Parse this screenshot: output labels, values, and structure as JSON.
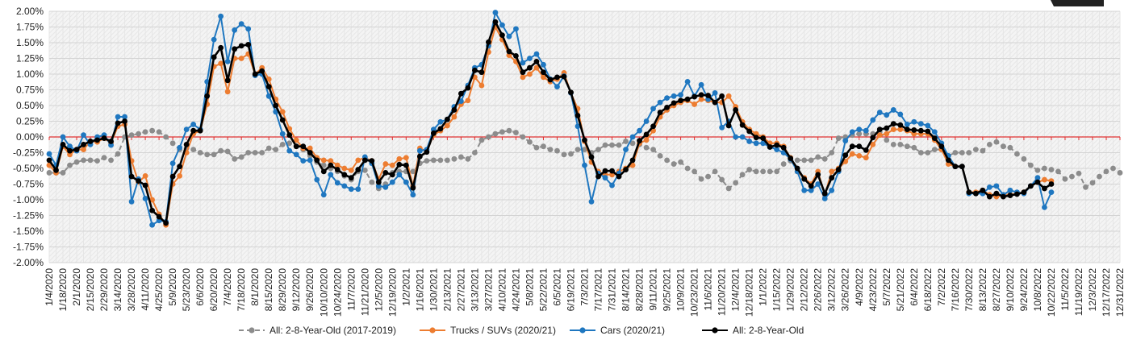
{
  "chart_data": {
    "type": "line",
    "title": "",
    "xlabel": "",
    "ylabel": "",
    "ylim": [
      -2.0,
      2.0
    ],
    "ytick_step": 0.25,
    "y_unit": "%",
    "x_start": "1/4/2020",
    "x_interval": "weekly",
    "grid": true,
    "legend_position": "bottom",
    "reference_line": {
      "value": 0,
      "color": "#e03030"
    },
    "x_tick_labels": [
      "1/4/2020",
      "1/18/2020",
      "2/1/2020",
      "2/15/2020",
      "2/29/2020",
      "3/14/2020",
      "3/28/2020",
      "4/11/2020",
      "4/25/2020",
      "5/9/2020",
      "5/23/2020",
      "6/6/2020",
      "6/20/2020",
      "7/4/2020",
      "7/18/2020",
      "8/1/2020",
      "8/15/2020",
      "8/29/2020",
      "9/12/2020",
      "9/26/2020",
      "10/10/2020",
      "10/24/2020",
      "11/7/2020",
      "11/21/2020",
      "12/5/2020",
      "12/19/2020",
      "1/2/2021",
      "1/16/2021",
      "1/30/2021",
      "2/13/2021",
      "2/27/2021",
      "3/13/2021",
      "3/27/2021",
      "4/10/2021",
      "4/24/2021",
      "5/8/2021",
      "5/22/2021",
      "6/5/2021",
      "6/19/2021",
      "7/3/2021",
      "7/17/2021",
      "7/31/2021",
      "8/14/2021",
      "8/28/2021",
      "9/11/2021",
      "9/25/2021",
      "10/9/2021",
      "10/23/2021",
      "11/6/2021",
      "11/20/2021",
      "12/4/2021",
      "12/18/2021",
      "1/1/2022",
      "1/15/2022",
      "1/29/2022",
      "2/12/2022",
      "2/26/2022",
      "3/12/2022",
      "3/26/2022",
      "4/9/2022",
      "4/23/2022",
      "5/7/2022",
      "5/21/2022",
      "6/4/2022",
      "6/18/2022",
      "7/2/2022",
      "7/16/2022",
      "7/30/2022",
      "8/13/2022",
      "8/27/2022",
      "9/10/2022",
      "9/24/2022",
      "10/8/2022",
      "10/22/2022",
      "11/5/2022",
      "11/19/2022",
      "12/3/2022",
      "12/17/2022",
      "12/31/2022"
    ],
    "y_tick_labels": [
      "2.00%",
      "1.75%",
      "1.50%",
      "1.25%",
      "1.00%",
      "0.75%",
      "0.50%",
      "0.25%",
      "0.00%",
      "-0.25%",
      "-0.50%",
      "-0.75%",
      "-1.00%",
      "-1.25%",
      "-1.50%",
      "-1.75%",
      "-2.00%"
    ],
    "series": [
      {
        "name": "All: 2-8-Year-Old (2017-2019)",
        "color": "#8c8c8c",
        "dashed": true,
        "values": [
          -0.57,
          -0.57,
          -0.57,
          -0.45,
          -0.4,
          -0.37,
          -0.37,
          -0.38,
          -0.33,
          -0.37,
          -0.27,
          0.0,
          0.03,
          0.05,
          0.08,
          0.1,
          0.08,
          0.0,
          -0.1,
          -0.2,
          -0.18,
          -0.2,
          -0.25,
          -0.28,
          -0.28,
          -0.22,
          -0.23,
          -0.35,
          -0.32,
          -0.25,
          -0.25,
          -0.25,
          -0.18,
          -0.2,
          -0.12,
          -0.1,
          -0.15,
          -0.2,
          -0.3,
          -0.4,
          -0.45,
          -0.5,
          -0.55,
          -0.62,
          -0.68,
          -0.55,
          -0.53,
          -0.72,
          -0.82,
          -0.75,
          -0.57,
          -0.55,
          -0.55,
          -0.55,
          -0.42,
          -0.38,
          -0.37,
          -0.37,
          -0.37,
          -0.35,
          -0.32,
          -0.35,
          -0.25,
          -0.05,
          0.0,
          0.05,
          0.08,
          0.1,
          0.07,
          0.0,
          -0.08,
          -0.17,
          -0.15,
          -0.2,
          -0.22,
          -0.28,
          -0.27,
          -0.2,
          -0.2,
          -0.25,
          -0.2,
          -0.13,
          -0.13,
          -0.13,
          -0.07,
          -0.1,
          -0.12,
          -0.17,
          -0.2,
          -0.3,
          -0.37,
          -0.43,
          -0.4,
          -0.5,
          -0.55,
          -0.67,
          -0.63,
          -0.55,
          -0.68,
          -0.82,
          -0.73,
          -0.6,
          -0.52,
          -0.55,
          -0.55,
          -0.55,
          -0.55,
          -0.43,
          -0.38,
          -0.37,
          -0.37,
          -0.37,
          -0.32,
          -0.35,
          -0.25,
          -0.02,
          0.0,
          0.03,
          0.05,
          0.05,
          0.05,
          0.08,
          -0.05,
          -0.12,
          -0.12,
          -0.15,
          -0.17,
          -0.25,
          -0.25,
          -0.2,
          -0.2,
          -0.3,
          -0.25,
          -0.25,
          -0.25,
          -0.2,
          -0.22,
          -0.12,
          -0.08,
          -0.15,
          -0.17,
          -0.27,
          -0.35,
          -0.45,
          -0.53,
          -0.5,
          -0.52,
          -0.55,
          -0.67,
          -0.63,
          -0.58,
          -0.8,
          -0.73,
          -0.63,
          -0.55,
          -0.5,
          -0.57
        ]
      },
      {
        "name": "Trucks / SUVs (2020/21)",
        "color": "#ed7d31",
        "dashed": false,
        "values": [
          -0.45,
          -0.57,
          -0.15,
          -0.28,
          -0.2,
          -0.2,
          -0.07,
          -0.08,
          -0.02,
          -0.1,
          0.17,
          0.2,
          -0.38,
          -0.72,
          -0.62,
          -1.0,
          -1.23,
          -1.4,
          -0.75,
          -0.62,
          -0.25,
          0.05,
          0.1,
          0.52,
          1.12,
          1.17,
          0.72,
          1.25,
          1.25,
          1.32,
          1.0,
          1.1,
          0.92,
          0.6,
          0.4,
          0.13,
          -0.05,
          -0.18,
          -0.18,
          -0.33,
          -0.37,
          -0.38,
          -0.45,
          -0.5,
          -0.53,
          -0.37,
          -0.33,
          -0.38,
          -0.67,
          -0.43,
          -0.45,
          -0.35,
          -0.33,
          -0.78,
          -0.18,
          -0.23,
          0.03,
          0.1,
          0.18,
          0.32,
          0.52,
          0.58,
          0.95,
          0.82,
          1.35,
          1.75,
          1.55,
          1.3,
          1.2,
          0.95,
          1.0,
          1.1,
          0.95,
          0.88,
          0.92,
          1.02,
          0.7,
          0.45,
          -0.07,
          -0.4,
          -0.55,
          -0.6,
          -0.6,
          -0.55,
          -0.5,
          -0.45,
          -0.1,
          -0.05,
          0.1,
          0.32,
          0.43,
          0.5,
          0.55,
          0.58,
          0.52,
          0.6,
          0.58,
          0.55,
          0.55,
          0.65,
          0.48,
          0.24,
          0.12,
          0.05,
          0.0,
          -0.1,
          -0.1,
          -0.15,
          -0.33,
          -0.55,
          -0.65,
          -0.75,
          -0.55,
          -0.92,
          -0.55,
          -0.5,
          -0.39,
          -0.27,
          -0.3,
          -0.33,
          -0.12,
          0.03,
          0.05,
          0.12,
          0.12,
          0.1,
          0.05,
          0.05,
          0.05,
          -0.05,
          -0.2,
          -0.43,
          -0.47,
          -0.47,
          -0.88,
          -0.88,
          -0.85,
          -0.92,
          -0.95,
          -0.92,
          -0.92,
          -0.9,
          -0.88,
          -0.78,
          -0.72,
          -0.68,
          -0.7
        ]
      },
      {
        "name": "Cars (2020/21)",
        "color": "#1f77c0",
        "dashed": false,
        "values": [
          -0.27,
          -0.45,
          0.0,
          -0.15,
          -0.22,
          0.03,
          -0.12,
          0.0,
          0.03,
          -0.13,
          0.32,
          0.32,
          -1.03,
          -0.67,
          -0.98,
          -1.4,
          -1.33,
          -1.35,
          -0.42,
          -0.17,
          0.12,
          0.2,
          0.12,
          0.88,
          1.55,
          1.92,
          1.2,
          1.7,
          1.8,
          1.72,
          0.98,
          1.0,
          0.65,
          0.4,
          0.05,
          -0.22,
          -0.28,
          -0.38,
          -0.37,
          -0.68,
          -0.92,
          -0.6,
          -0.73,
          -0.78,
          -0.83,
          -0.83,
          -0.32,
          -0.42,
          -0.78,
          -0.8,
          -0.72,
          -0.6,
          -0.72,
          -0.92,
          -0.22,
          -0.2,
          0.12,
          0.24,
          0.28,
          0.48,
          0.57,
          0.82,
          1.1,
          1.15,
          1.45,
          1.98,
          1.78,
          1.6,
          1.72,
          1.18,
          1.25,
          1.32,
          1.15,
          0.92,
          0.8,
          0.97,
          0.7,
          0.17,
          -0.45,
          -1.03,
          -0.58,
          -0.65,
          -0.77,
          -0.58,
          -0.2,
          0.0,
          0.1,
          0.25,
          0.45,
          0.55,
          0.62,
          0.65,
          0.67,
          0.88,
          0.65,
          0.83,
          0.6,
          0.7,
          0.15,
          0.25,
          0.0,
          0.0,
          -0.07,
          -0.1,
          -0.1,
          -0.16,
          -0.2,
          -0.25,
          -0.35,
          -0.55,
          -0.85,
          -0.85,
          -0.75,
          -0.98,
          -0.85,
          -0.55,
          -0.06,
          0.08,
          0.12,
          0.1,
          0.27,
          0.39,
          0.35,
          0.43,
          0.36,
          0.2,
          0.24,
          0.21,
          0.18,
          0.08,
          -0.1,
          -0.3,
          -0.47,
          -0.47,
          -0.9,
          -0.9,
          -0.9,
          -0.8,
          -0.78,
          -0.92,
          -0.85,
          -0.88,
          -0.9,
          -0.78,
          -0.65,
          -1.12,
          -0.88
        ]
      },
      {
        "name": "All: 2-8-Year-Old",
        "color": "#000000",
        "dashed": false,
        "values": [
          -0.37,
          -0.53,
          -0.12,
          -0.22,
          -0.2,
          -0.12,
          -0.07,
          -0.05,
          -0.02,
          -0.07,
          0.22,
          0.25,
          -0.63,
          -0.7,
          -0.77,
          -1.17,
          -1.27,
          -1.37,
          -0.63,
          -0.47,
          -0.12,
          0.1,
          0.1,
          0.65,
          1.27,
          1.42,
          0.9,
          1.4,
          1.45,
          1.47,
          1.0,
          1.05,
          0.8,
          0.5,
          0.27,
          0.03,
          -0.15,
          -0.15,
          -0.25,
          -0.37,
          -0.55,
          -0.45,
          -0.52,
          -0.6,
          -0.65,
          -0.52,
          -0.37,
          -0.38,
          -0.72,
          -0.57,
          -0.6,
          -0.44,
          -0.45,
          -0.81,
          -0.31,
          -0.24,
          0.06,
          0.13,
          0.28,
          0.43,
          0.69,
          0.78,
          1.06,
          1.03,
          1.51,
          1.83,
          1.62,
          1.36,
          1.29,
          1.03,
          1.1,
          1.2,
          1.03,
          0.91,
          0.95,
          0.96,
          0.71,
          0.34,
          -0.05,
          -0.32,
          -0.63,
          -0.54,
          -0.54,
          -0.63,
          -0.52,
          -0.37,
          -0.06,
          0.04,
          0.17,
          0.39,
          0.47,
          0.54,
          0.58,
          0.6,
          0.64,
          0.67,
          0.66,
          0.55,
          0.65,
          0.18,
          0.43,
          0.19,
          0.09,
          -0.01,
          -0.02,
          -0.16,
          -0.13,
          -0.17,
          -0.34,
          -0.5,
          -0.67,
          -0.78,
          -0.6,
          -0.9,
          -0.65,
          -0.52,
          -0.29,
          -0.15,
          -0.15,
          -0.21,
          -0.01,
          0.12,
          0.14,
          0.21,
          0.19,
          0.12,
          0.11,
          0.1,
          0.09,
          -0.02,
          -0.15,
          -0.37,
          -0.47,
          -0.47,
          -0.88,
          -0.9,
          -0.85,
          -0.95,
          -0.9,
          -0.95,
          -0.93,
          -0.91,
          -0.88,
          -0.78,
          -0.72,
          -0.82,
          -0.75
        ]
      }
    ]
  }
}
